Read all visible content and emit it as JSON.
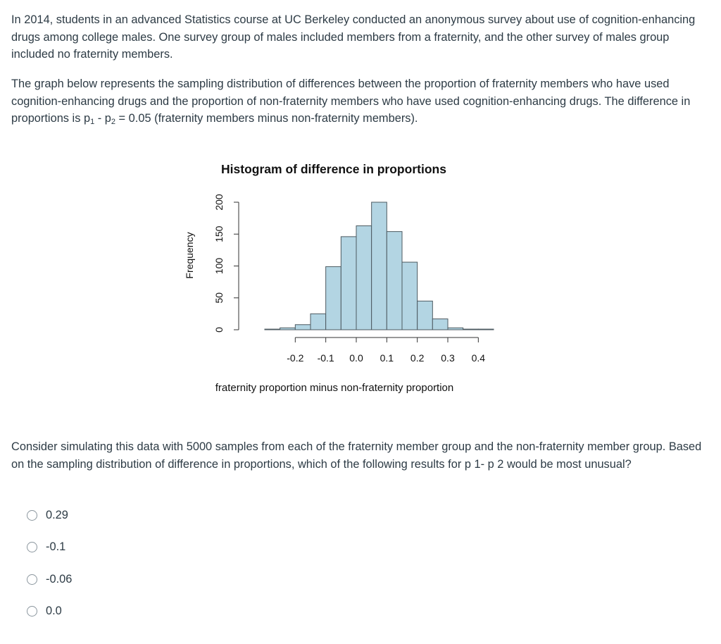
{
  "question": {
    "intro": "In 2014, students in an advanced Statistics course at UC Berkeley conducted an anonymous survey about use of cognition-enhancing drugs among college males. One survey group of males included members from a fraternity, and the other survey of males group included no fraternity members.",
    "graph_text_before": "The graph below represents the sampling distribution of differences between the proportion of fraternity members who have used cognition-enhancing drugs and the proportion of non-fraternity members who have used cognition-enhancing drugs. The difference in proportions is p",
    "p1_sub": "1",
    "minus": " - p",
    "p2_sub": "2",
    "graph_text_after": " = 0.05 (fraternity members minus non-fraternity members).",
    "prompt": "Consider simulating this data with 5000 samples from each of the fraternity member group and the non-fraternity member group. Based on the sampling distribution of difference in proportions, which of the following results for p 1- p 2 would be most unusual?",
    "options": [
      "0.29",
      "-0.1",
      "-0.06",
      "0.0"
    ]
  },
  "chart_data": {
    "type": "bar",
    "title": "Histogram of difference in proportions",
    "xlabel": "fraternity proportion minus non-fraternity proportion",
    "ylabel": "Frequency",
    "bin_edges": [
      -0.3,
      -0.25,
      -0.2,
      -0.15,
      -0.1,
      -0.05,
      0.0,
      0.05,
      0.1,
      0.15,
      0.2,
      0.25,
      0.3,
      0.35,
      0.4,
      0.45
    ],
    "values": [
      1,
      3,
      8,
      25,
      99,
      146,
      163,
      200,
      154,
      106,
      45,
      17,
      3,
      1,
      1
    ],
    "xticks": [
      "-0.2",
      "-0.1",
      "0.0",
      "0.1",
      "0.2",
      "0.3",
      "0.4"
    ],
    "yticks": [
      "0",
      "50",
      "100",
      "150",
      "200"
    ],
    "xlim": [
      -0.3,
      0.45
    ],
    "ylim": [
      0,
      200
    ],
    "colors": {
      "bar_fill": "#b3d5e3",
      "bar_stroke": "#4d5a61"
    }
  }
}
